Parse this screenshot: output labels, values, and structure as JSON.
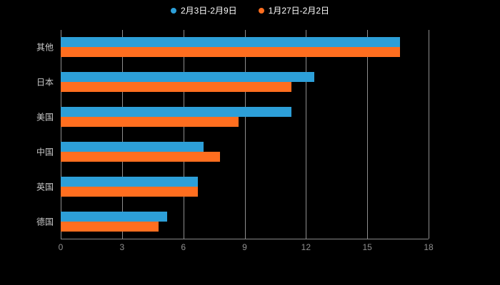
{
  "chart_data": {
    "type": "bar",
    "orientation": "horizontal",
    "title": "",
    "categories": [
      "其他",
      "日本",
      "美国",
      "中国",
      "英国",
      "德国"
    ],
    "series": [
      {
        "name": "2月3日-2月9日",
        "color": "#2d9fd8",
        "values": [
          16.6,
          12.4,
          11.3,
          7.0,
          6.7,
          5.2
        ]
      },
      {
        "name": "1月27日-2月2日",
        "color": "#ff6e1f",
        "values": [
          16.6,
          11.3,
          8.7,
          7.8,
          6.7,
          4.8
        ]
      }
    ],
    "xlim": [
      0,
      18
    ],
    "xticks": [
      0,
      3,
      6,
      9,
      12,
      15,
      18
    ],
    "grid": true,
    "legend_position": "top",
    "colors": {
      "background": "#000000",
      "gridline": "#8f8f8f",
      "axis_line": "#8a8a8a",
      "tick_label": "#909090",
      "category_label": "#c8c8c8",
      "legend_text": "#ffffff"
    }
  }
}
